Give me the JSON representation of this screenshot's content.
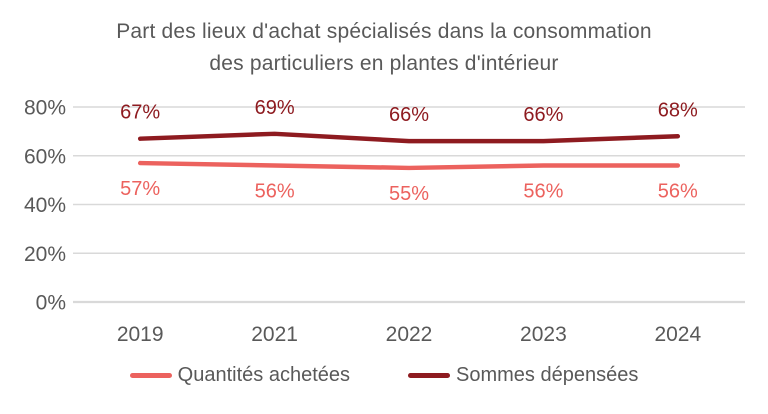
{
  "title_lines": [
    "Part des lieux d'achat spécialisés dans la consommation",
    "des particuliers en plantes d'intérieur"
  ],
  "colors": {
    "background": "#ffffff",
    "title_text": "#595959",
    "axis_text": "#595959",
    "gridline": "#d9d9d9",
    "series_light": "#ec625e",
    "series_dark": "#8e1b20"
  },
  "chart_data": {
    "type": "line",
    "title": "Part des lieux d'achat spécialisés dans la consommation des particuliers en plantes d'intérieur",
    "categories": [
      "2019",
      "2021",
      "2022",
      "2023",
      "2024"
    ],
    "series": [
      {
        "name": "Quantités achetées",
        "color": "#ec625e",
        "values": [
          57,
          56,
          55,
          56,
          56
        ],
        "data_labels": [
          "57%",
          "56%",
          "55%",
          "56%",
          "56%"
        ],
        "label_position": "below"
      },
      {
        "name": "Sommes dépensées",
        "color": "#8e1b20",
        "values": [
          67,
          69,
          66,
          66,
          68
        ],
        "data_labels": [
          "67%",
          "69%",
          "66%",
          "66%",
          "68%"
        ],
        "label_position": "above"
      }
    ],
    "y_axis": {
      "min": 0,
      "max": 80,
      "ticks": [
        {
          "value": 0,
          "label": "0%"
        },
        {
          "value": 20,
          "label": "20%"
        },
        {
          "value": 40,
          "label": "40%"
        },
        {
          "value": 60,
          "label": "60%"
        },
        {
          "value": 80,
          "label": "80%"
        }
      ]
    },
    "grid": true,
    "legend_position": "bottom"
  }
}
